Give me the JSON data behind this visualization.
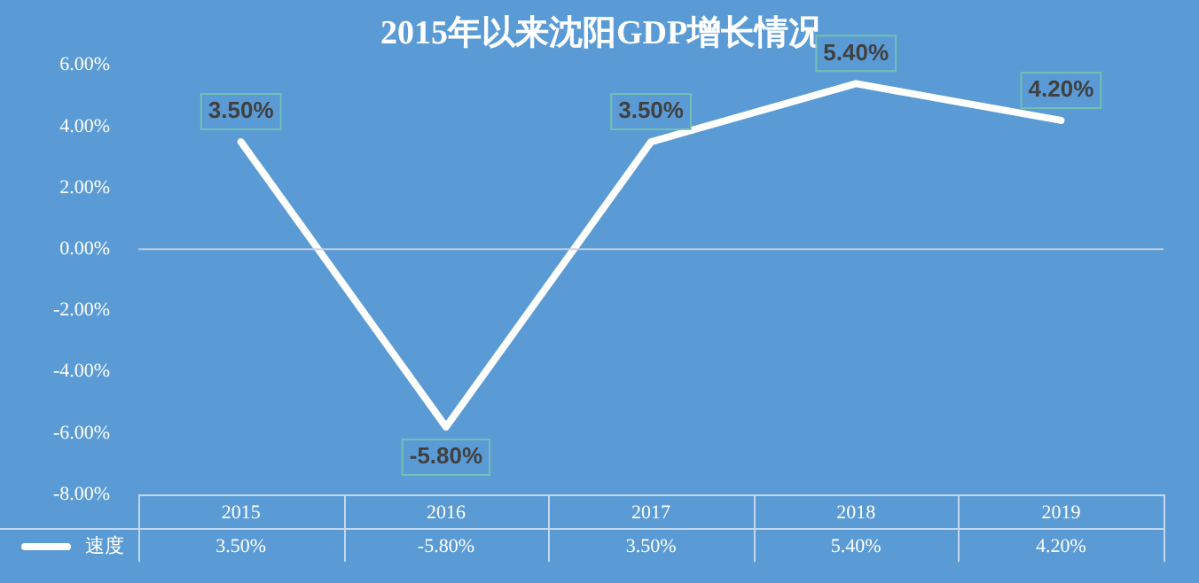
{
  "chart_data": {
    "type": "line",
    "title": "2015年以来沈阳GDP增长情况",
    "categories": [
      "2015",
      "2016",
      "2017",
      "2018",
      "2019"
    ],
    "series": [
      {
        "name": "速度",
        "color": "#ffffff",
        "values": [
          3.5,
          -5.8,
          3.5,
          5.4,
          4.2
        ],
        "value_labels": [
          "3.50%",
          "-5.80%",
          "3.50%",
          "5.40%",
          "4.20%"
        ]
      }
    ],
    "ylim": [
      -8,
      6
    ],
    "yticks": [
      {
        "value": 6,
        "label": "6.00%"
      },
      {
        "value": 4,
        "label": "4.00%"
      },
      {
        "value": 2,
        "label": "2.00%"
      },
      {
        "value": 0,
        "label": "0.00%"
      },
      {
        "value": -2,
        "label": "-2.00%"
      },
      {
        "value": -4,
        "label": "-4.00%"
      },
      {
        "value": -6,
        "label": "-6.00%"
      },
      {
        "value": -8,
        "label": "-8.00%"
      }
    ],
    "ref_lines": [
      {
        "axis": "y",
        "value": 0
      }
    ],
    "grid": false,
    "legend": "bottom",
    "marker": "none",
    "line_style": "solid"
  }
}
